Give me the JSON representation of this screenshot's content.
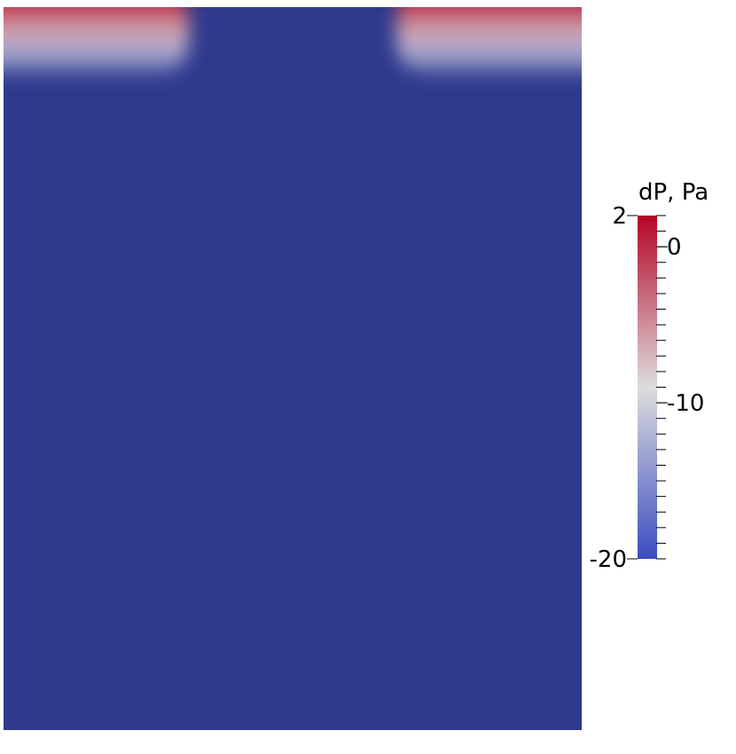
{
  "chart_data": {
    "type": "heatmap",
    "title": "",
    "field": {
      "x_range": [
        0,
        1
      ],
      "y_range": [
        0,
        1
      ],
      "values_description": "dP field on a rectangular domain",
      "background_value": -20,
      "surface_value": 2,
      "surface_regions": [
        {
          "name": "left",
          "x_start": 0.0,
          "x_end": 0.32
        },
        {
          "name": "right",
          "x_start": 0.68,
          "x_end": 1.0
        }
      ]
    },
    "colorbar": {
      "title": "dP, Pa",
      "range": [
        -20,
        2
      ],
      "tick_labels": [
        {
          "value": 2,
          "label": "2",
          "side": "left"
        },
        {
          "value": 0,
          "label": "0",
          "side": "right"
        },
        {
          "value": -10,
          "label": "-10",
          "side": "right"
        },
        {
          "value": -20,
          "label": "-20",
          "side": "left"
        }
      ],
      "colors": {
        "low": "#3B4CC0",
        "mid": "#DDDDDD",
        "high": "#B40426",
        "field_background": "#2F3A8D"
      }
    }
  }
}
